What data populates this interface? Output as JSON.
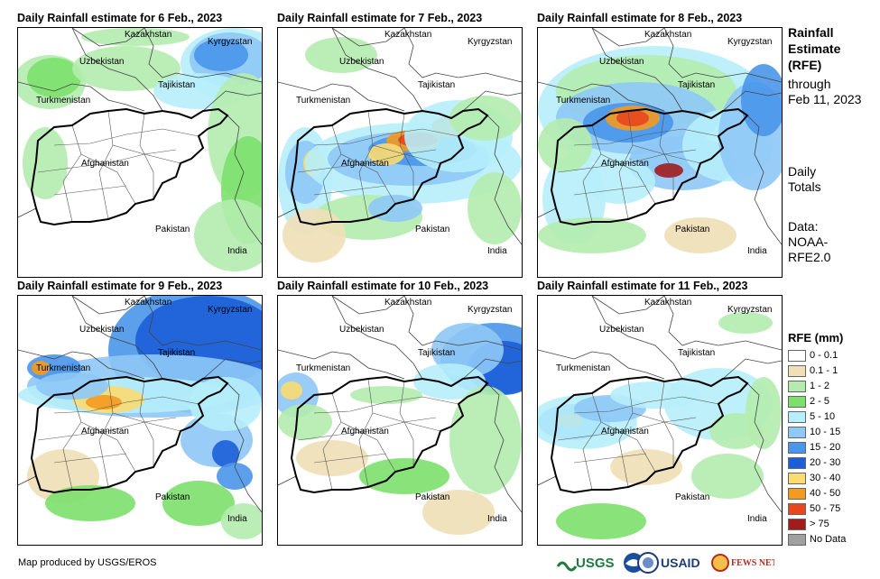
{
  "panels": [
    {
      "title": "Daily Rainfall estimate for 6 Feb., 2023"
    },
    {
      "title": "Daily Rainfall estimate for 7 Feb., 2023"
    },
    {
      "title": "Daily Rainfall estimate for 8 Feb., 2023"
    },
    {
      "title": "Daily Rainfall estimate for 9 Feb., 2023"
    },
    {
      "title": "Daily Rainfall estimate for 10 Feb., 2023"
    },
    {
      "title": "Daily Rainfall estimate for 11 Feb., 2023"
    }
  ],
  "labels": {
    "kazakhstan": "Kazakhstan",
    "kyrgyzstan": "Kyrgyzstan",
    "uzbekistan": "Uzbekistan",
    "tajikistan": "Tajikistan",
    "turkmenistan": "Turkmenistan",
    "afghanistan": "Afghanistan",
    "pakistan": "Pakistan",
    "india": "India"
  },
  "side": {
    "title_line1": "Rainfall",
    "title_line2": "Estimate",
    "title_line3": "(RFE)",
    "through": "through",
    "date": "Feb 11, 2023",
    "daily1": "Daily",
    "daily2": "Totals",
    "data1": "Data:",
    "data2": "NOAA-",
    "data3": "RFE2.0"
  },
  "legend": {
    "title": "RFE (mm)",
    "items": [
      {
        "label": "0 - 0.1",
        "color": "#ffffff"
      },
      {
        "label": "0.1 - 1",
        "color": "#f0dfb7"
      },
      {
        "label": "1 - 2",
        "color": "#b4ecae"
      },
      {
        "label": "2 - 5",
        "color": "#7ce06c"
      },
      {
        "label": "5 - 10",
        "color": "#b6eefb"
      },
      {
        "label": "10 - 15",
        "color": "#8ec8f6"
      },
      {
        "label": "15 - 20",
        "color": "#4a96ea"
      },
      {
        "label": "20 - 30",
        "color": "#1c5ed8"
      },
      {
        "label": "30 - 40",
        "color": "#fbdc70"
      },
      {
        "label": "40 - 50",
        "color": "#f49a20"
      },
      {
        "label": "50 - 75",
        "color": "#e8461c"
      },
      {
        "label": "> 75",
        "color": "#a21c1c"
      },
      {
        "label": "No Data",
        "color": "#a0a0a0"
      }
    ]
  },
  "credit": "Map produced by USGS/EROS",
  "logos": {
    "usgs": "USGS",
    "usaid": "USAID",
    "fewsnet": "FEWS NET"
  }
}
